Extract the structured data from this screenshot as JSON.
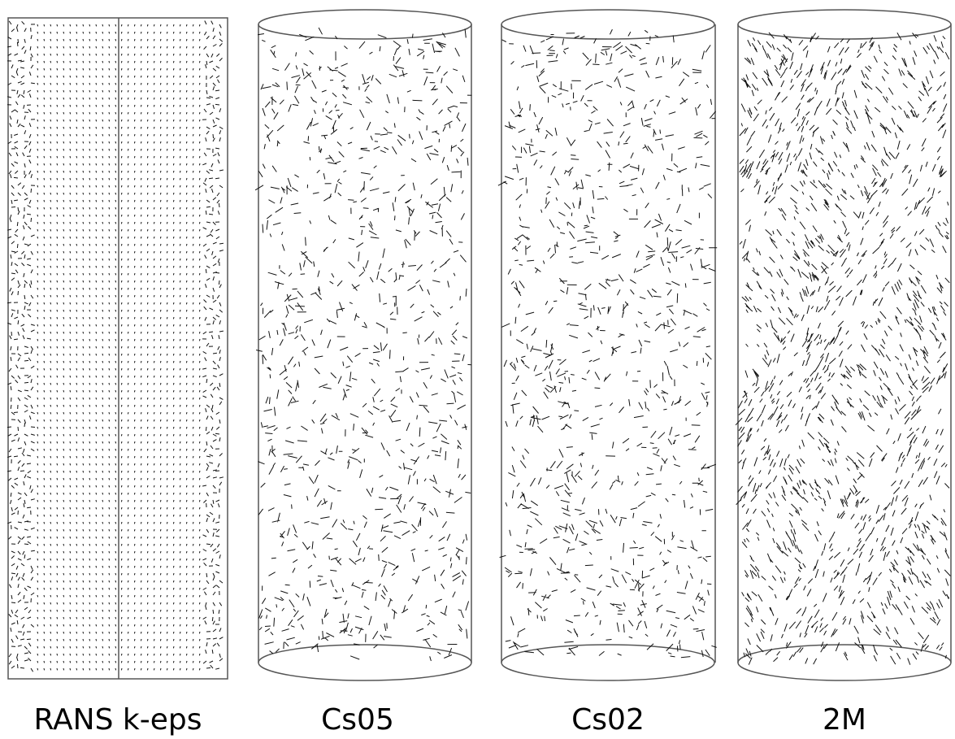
{
  "panels": [
    {
      "label": "RANS k-eps"
    },
    {
      "label": "Cs05"
    },
    {
      "label": "Cs02"
    },
    {
      "label": "2M"
    }
  ]
}
